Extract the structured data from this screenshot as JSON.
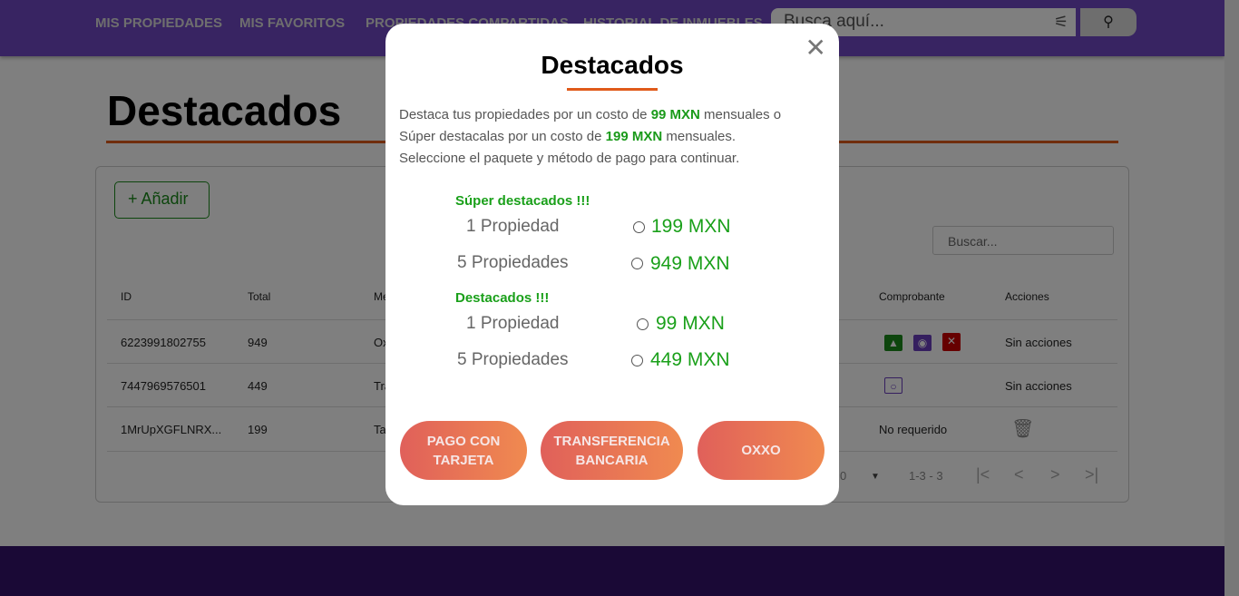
{
  "header": {
    "nav": [
      "MIS PROPIEDADES",
      "MIS FAVORITOS",
      "PROPIEDADES COMPARTIDAS",
      "HISTORIAL DE INMUEBLES"
    ],
    "search_placeholder": "Busca aquí...",
    "filter_icon": "sliders-icon",
    "search_icon": "magnifier-icon"
  },
  "page": {
    "title": "Destacados",
    "add_label": "+ Añadir",
    "table_search_placeholder": "Buscar...",
    "columns": [
      "ID",
      "Total",
      "Me",
      "Comprobante",
      "Acciones"
    ],
    "rows": [
      {
        "id": "6223991802755",
        "total": "949",
        "method": "Ox",
        "acciones": "Sin acciones"
      },
      {
        "id": "7447969576501",
        "total": "449",
        "method": "Tra",
        "acciones": "Sin acciones"
      },
      {
        "id": "1MrUpXGFLNRX...",
        "total": "199",
        "method": "Ta",
        "comprobante": "No requerido"
      }
    ],
    "pagination": {
      "rows_per_page_fragment": "0",
      "range": "1-3 - 3"
    }
  },
  "modal": {
    "title": "Destacados",
    "desc": {
      "l1a": "Destaca tus propiedades por un costo de ",
      "l1b": "99 MXN",
      "l1c": " mensuales o",
      "l2a": "Súper destacalas por un costo de ",
      "l2b": "199 MXN",
      "l2c": " mensuales.",
      "l3": "Seleccione el paquete y método de pago para continuar."
    },
    "super": {
      "title": "Súper destacados !!!",
      "options": [
        {
          "label": "1 Propiedad",
          "price": "199 MXN",
          "selected": false
        },
        {
          "label": "5 Propiedades",
          "price": "949 MXN",
          "selected": false
        }
      ]
    },
    "normal": {
      "title": "Destacados !!!",
      "options": [
        {
          "label": "1 Propiedad",
          "price": "99 MXN",
          "selected": false
        },
        {
          "label": "5 Propiedades",
          "price": "449 MXN",
          "selected": false
        }
      ]
    },
    "buttons": {
      "card": "PAGO CON TARJETA",
      "transfer": "TRANSFERENCIA BANCARIA",
      "oxxo": "OXXO"
    }
  },
  "colors": {
    "header": "#7149c4",
    "accent": "#e05a1a",
    "green": "#1aa01a"
  }
}
